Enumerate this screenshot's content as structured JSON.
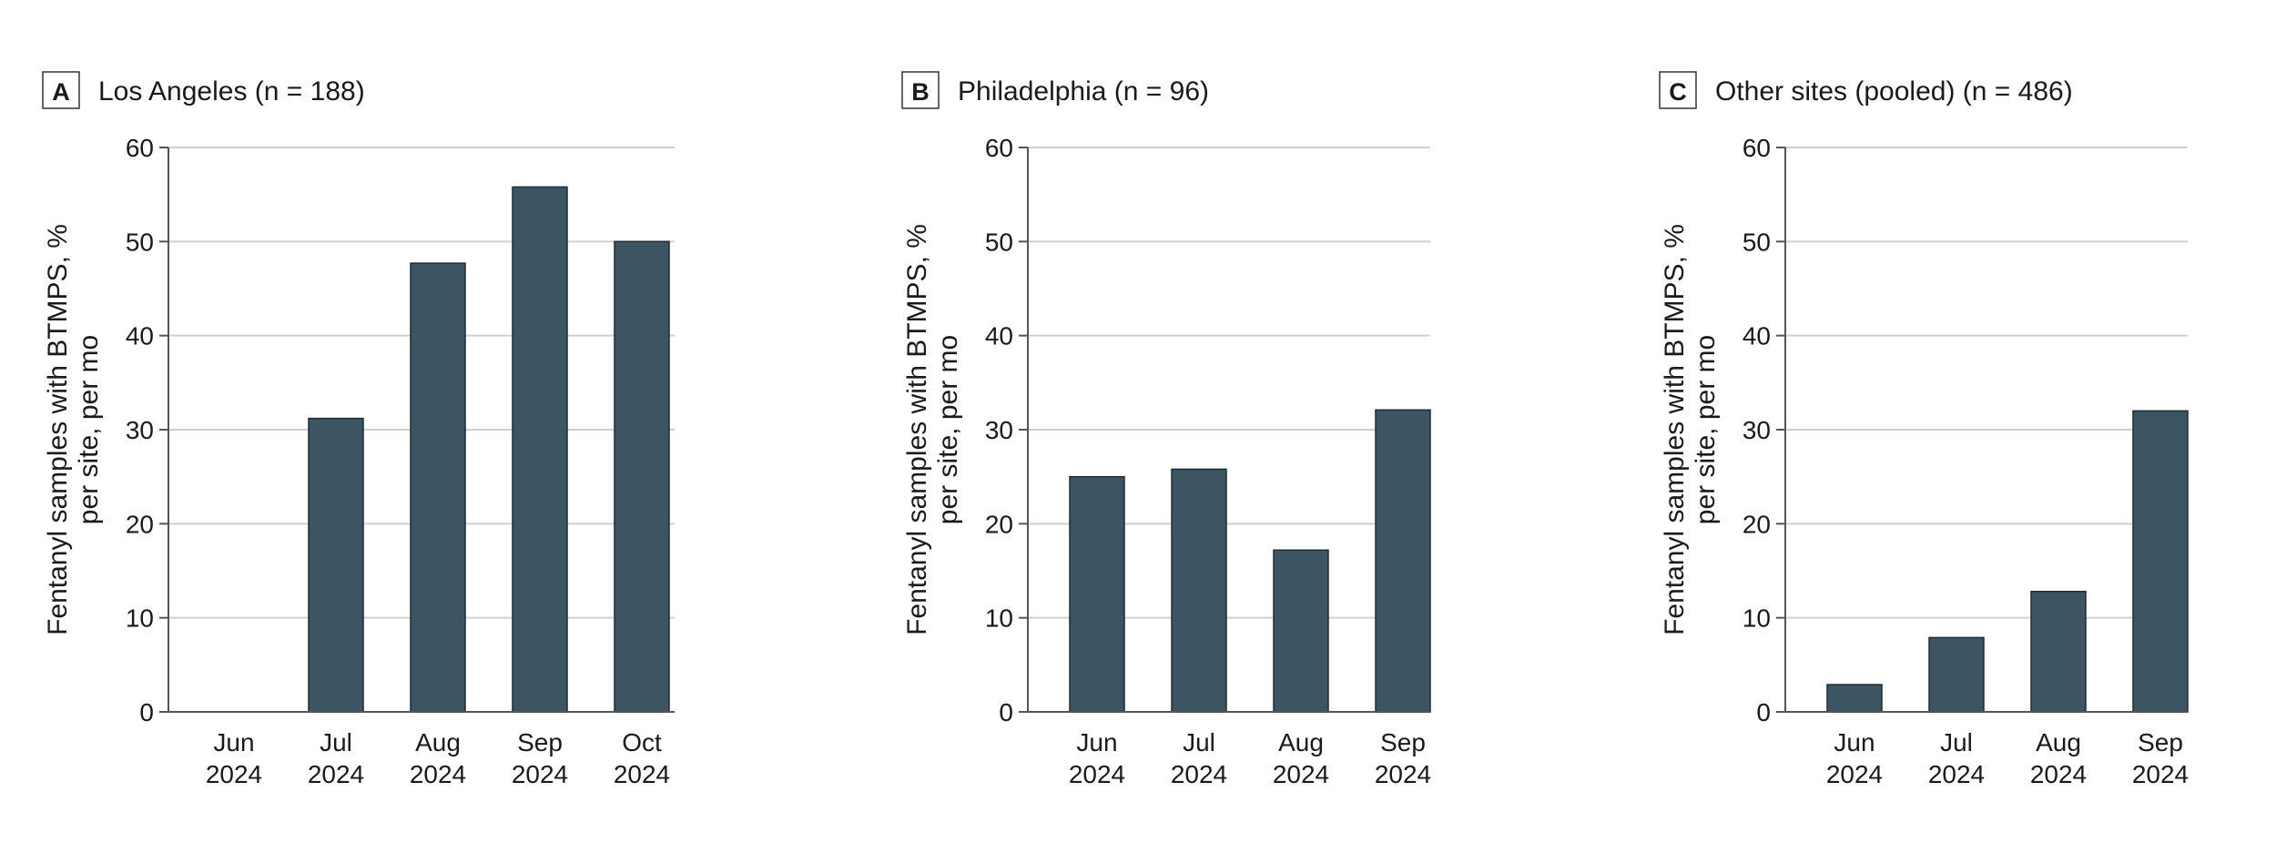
{
  "chart_data": [
    {
      "type": "bar",
      "panel": "A",
      "title": "Los Angeles (n = 188)",
      "ylabel_lines": [
        "Fentanyl samples with BTMPS, %",
        "per site, per mo"
      ],
      "categories": [
        {
          "month": "Jun",
          "year": "2024"
        },
        {
          "month": "Jul",
          "year": "2024"
        },
        {
          "month": "Aug",
          "year": "2024"
        },
        {
          "month": "Sep",
          "year": "2024"
        },
        {
          "month": "Oct",
          "year": "2024"
        }
      ],
      "values": [
        null,
        31.2,
        47.7,
        55.8,
        50.0
      ],
      "ylim": [
        0,
        60
      ],
      "yticks": [
        "0",
        "10",
        "20",
        "30",
        "40",
        "50",
        "60"
      ],
      "grid": true,
      "bar_color": "#3b5563"
    },
    {
      "type": "bar",
      "panel": "B",
      "title": "Philadelphia (n = 96)",
      "ylabel_lines": [
        "Fentanyl samples with BTMPS, %",
        "per site, per mo"
      ],
      "categories": [
        {
          "month": "Jun",
          "year": "2024"
        },
        {
          "month": "Jul",
          "year": "2024"
        },
        {
          "month": "Aug",
          "year": "2024"
        },
        {
          "month": "Sep",
          "year": "2024"
        }
      ],
      "values": [
        25.0,
        25.8,
        17.2,
        32.1
      ],
      "ylim": [
        0,
        60
      ],
      "yticks": [
        "0",
        "10",
        "20",
        "30",
        "40",
        "50",
        "60"
      ],
      "grid": true,
      "bar_color": "#3b5563"
    },
    {
      "type": "bar",
      "panel": "C",
      "title": "Other sites (pooled) (n = 486)",
      "ylabel_lines": [
        "Fentanyl samples with BTMPS, %",
        "per site, per mo"
      ],
      "categories": [
        {
          "month": "Jun",
          "year": "2024"
        },
        {
          "month": "Jul",
          "year": "2024"
        },
        {
          "month": "Aug",
          "year": "2024"
        },
        {
          "month": "Sep",
          "year": "2024"
        }
      ],
      "values": [
        2.9,
        7.9,
        12.8,
        32.0
      ],
      "ylim": [
        0,
        60
      ],
      "yticks": [
        "0",
        "10",
        "20",
        "30",
        "40",
        "50",
        "60"
      ],
      "grid": true,
      "bar_color": "#3b5563"
    }
  ]
}
